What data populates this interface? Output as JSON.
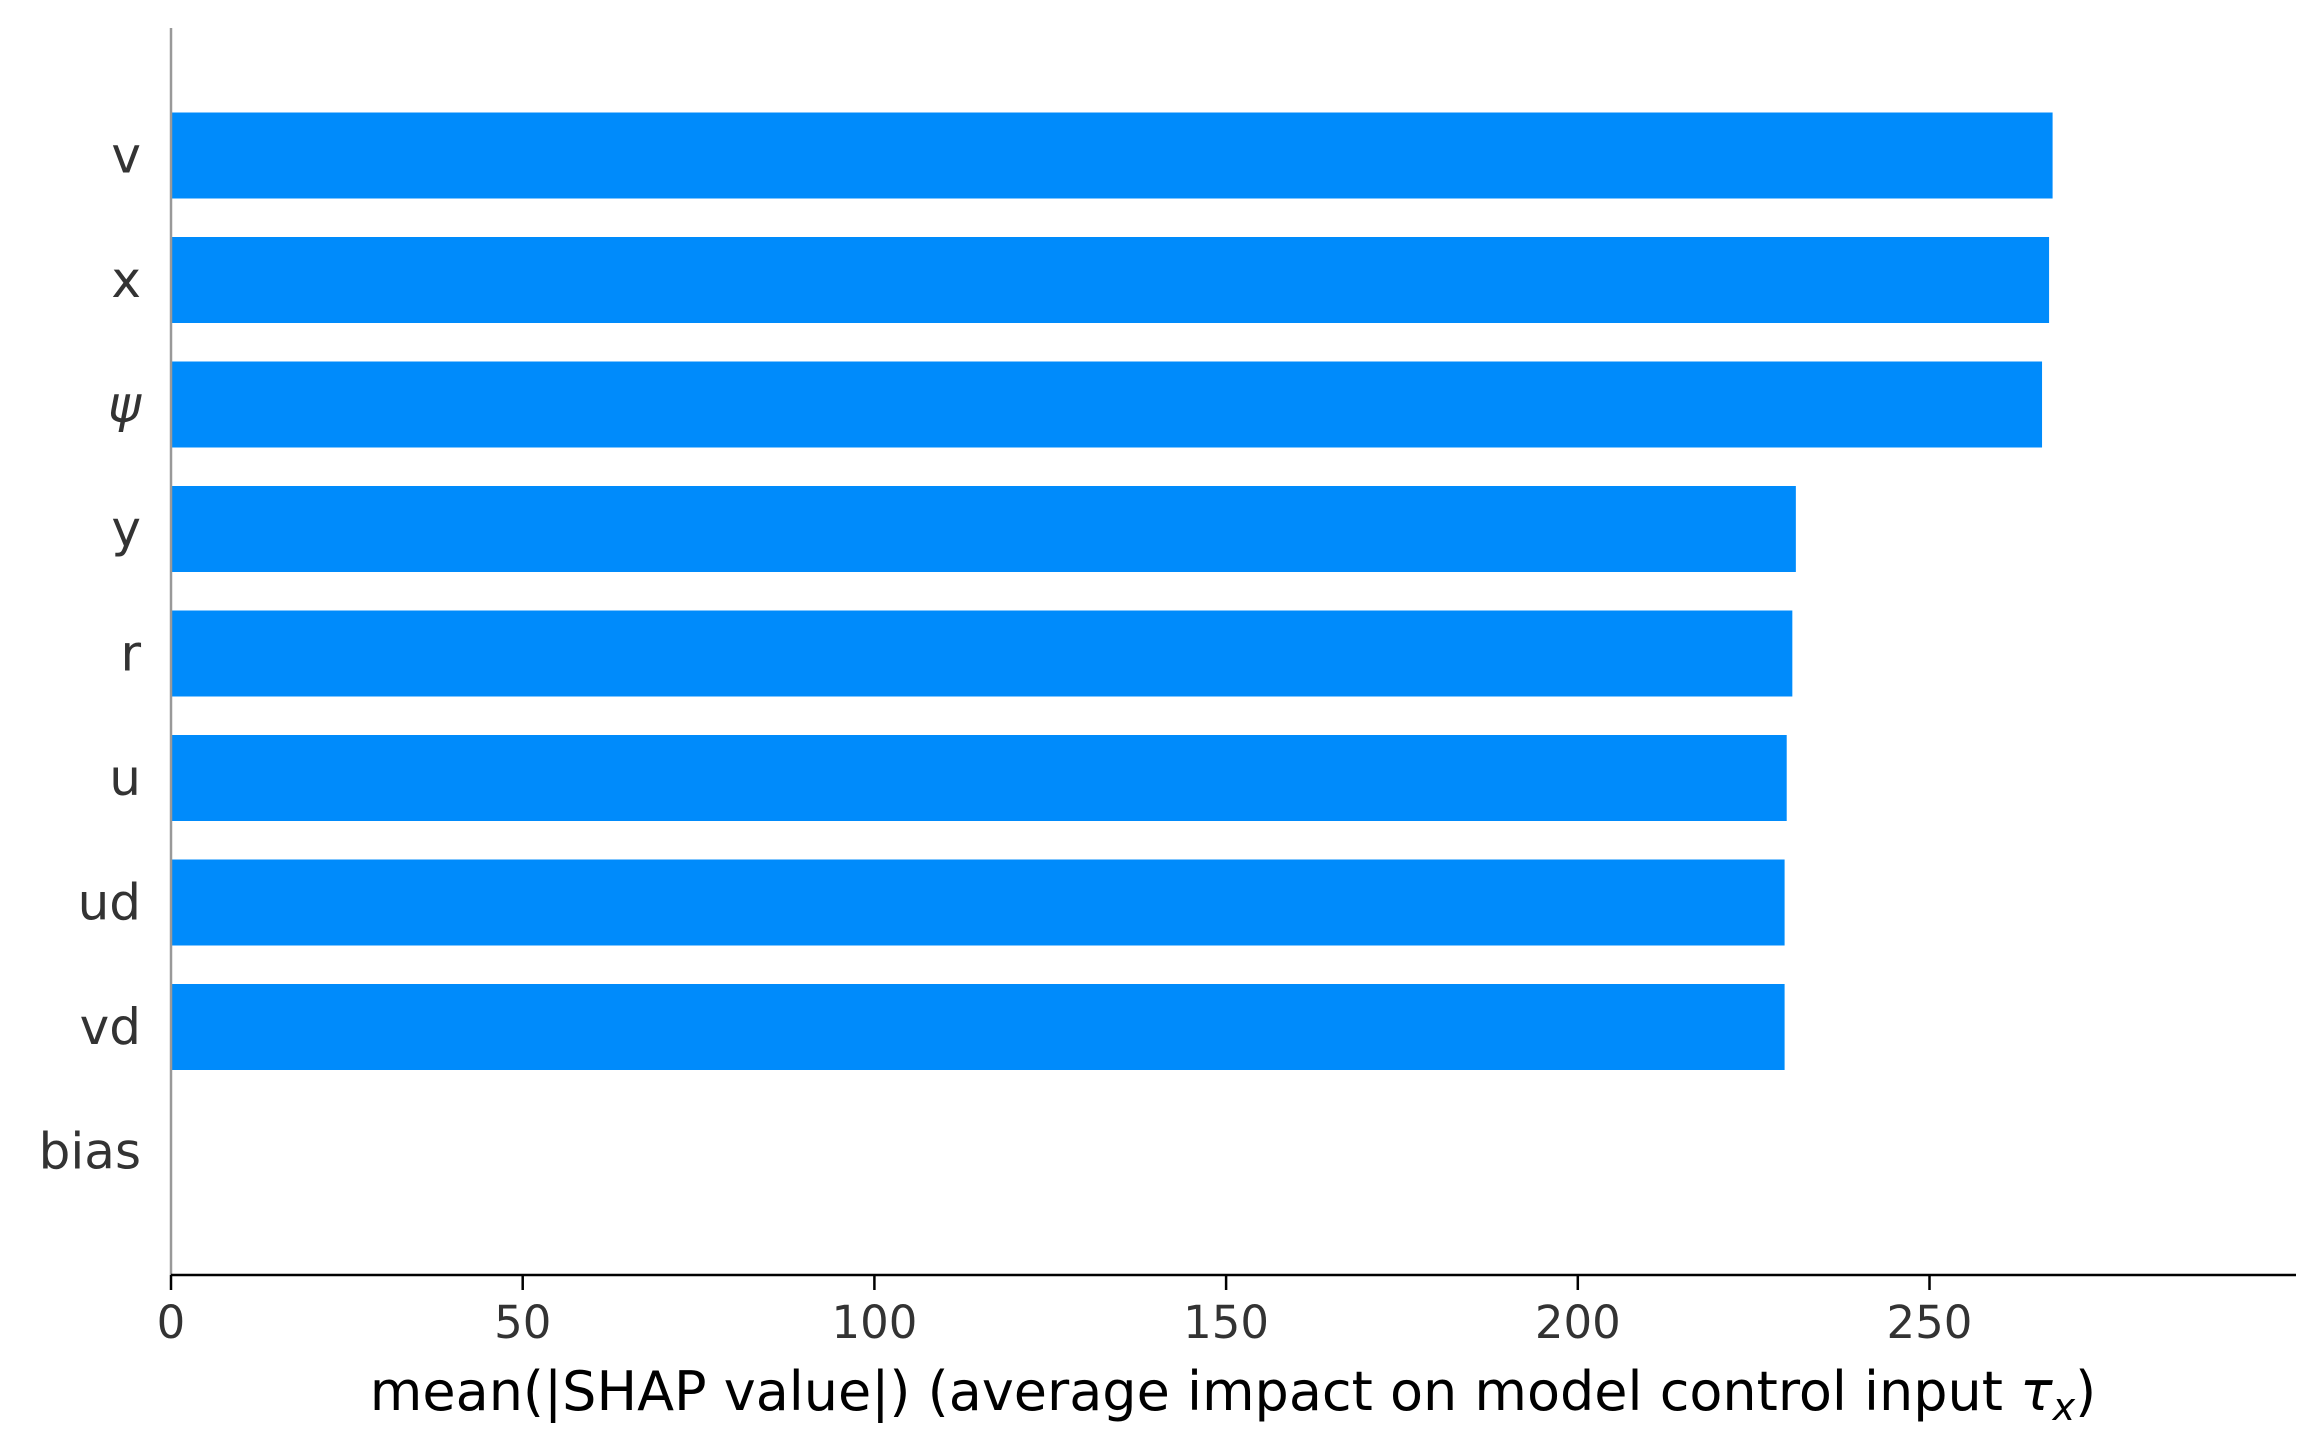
{
  "chart_data": {
    "type": "bar",
    "orientation": "horizontal",
    "categories": [
      "v",
      "x",
      "ψ",
      "y",
      "r",
      "u",
      "ud",
      "vd",
      "bias"
    ],
    "values": [
      267.5,
      267.0,
      266.0,
      231.0,
      230.5,
      229.7,
      229.4,
      229.4,
      0
    ],
    "xlabel_parts": [
      "mean(|SHAP value|) (average impact on model control input ",
      "τ",
      "x",
      ")"
    ],
    "xticks": [
      0,
      50,
      100,
      150,
      200,
      250
    ],
    "xlim": [
      0,
      281
    ],
    "grid": false,
    "legend": "none",
    "colors": {
      "bar": "#008bfb",
      "axis": "#000000",
      "spine_left": "#999999",
      "text": "#333333"
    }
  }
}
